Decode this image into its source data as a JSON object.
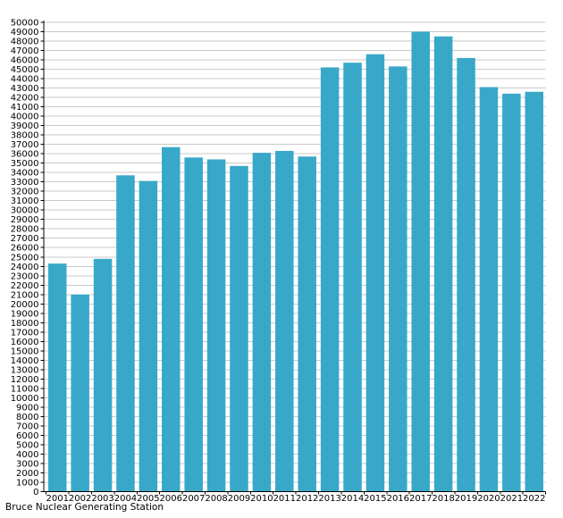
{
  "chart_data": {
    "type": "bar",
    "title": "",
    "caption": "Bruce Nuclear Generating Station",
    "xlabel": "",
    "ylabel": "",
    "categories": [
      "2001",
      "2002",
      "2003",
      "2004",
      "2005",
      "2006",
      "2007",
      "2008",
      "2009",
      "2010",
      "2011",
      "2012",
      "2013",
      "2014",
      "2015",
      "2016",
      "2017",
      "2018",
      "2019",
      "2020",
      "2021",
      "2022"
    ],
    "values": [
      24300,
      21000,
      24800,
      33700,
      33100,
      36700,
      35600,
      35400,
      34700,
      36100,
      36300,
      35700,
      45200,
      45700,
      46600,
      45300,
      49000,
      48500,
      46200,
      43100,
      42400,
      42600
    ],
    "ylim": [
      0,
      50000
    ],
    "ytick_step": 1000,
    "grid": true,
    "legend": false,
    "colors": {
      "bar": "#39A8C8",
      "grid": "#c9c9c9",
      "axis": "#000000",
      "text": "#000000",
      "background": "#ffffff"
    }
  }
}
